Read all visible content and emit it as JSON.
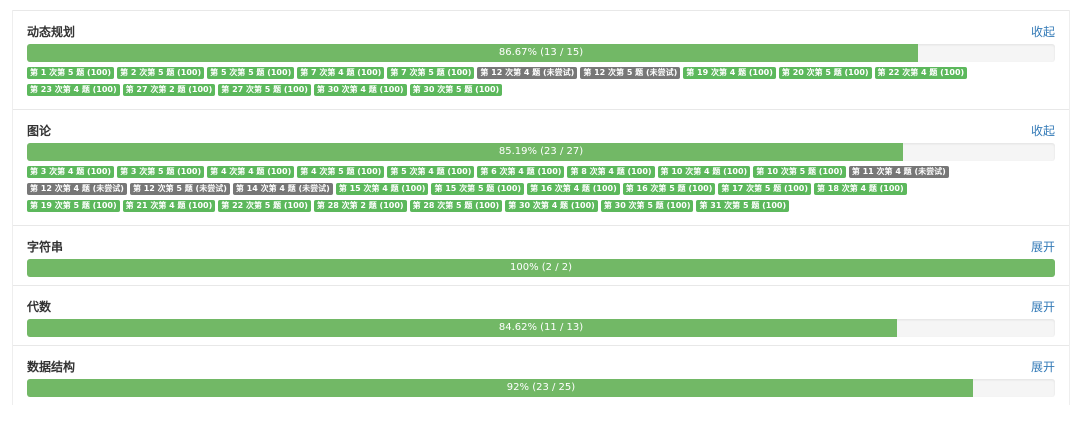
{
  "sections": [
    {
      "title": "动态规划",
      "toggle": "收起",
      "percent": 86.67,
      "label": "86.67% (13 / 15)",
      "badges": [
        {
          "t": "第 1 次第 5 题 (100)",
          "s": "ok"
        },
        {
          "t": "第 2 次第 5 题 (100)",
          "s": "ok"
        },
        {
          "t": "第 5 次第 5 题 (100)",
          "s": "ok"
        },
        {
          "t": "第 7 次第 4 题 (100)",
          "s": "ok"
        },
        {
          "t": "第 7 次第 5 题 (100)",
          "s": "ok"
        },
        {
          "t": "第 12 次第 4 题 (未尝试)",
          "s": "na"
        },
        {
          "t": "第 12 次第 5 题 (未尝试)",
          "s": "na"
        },
        {
          "t": "第 19 次第 4 题 (100)",
          "s": "ok"
        },
        {
          "t": "第 20 次第 5 题 (100)",
          "s": "ok"
        },
        {
          "t": "第 22 次第 4 题 (100)",
          "s": "ok"
        },
        {
          "t": "第 23 次第 4 题 (100)",
          "s": "ok"
        },
        {
          "t": "第 27 次第 2 题 (100)",
          "s": "ok"
        },
        {
          "t": "第 27 次第 5 题 (100)",
          "s": "ok"
        },
        {
          "t": "第 30 次第 4 题 (100)",
          "s": "ok"
        },
        {
          "t": "第 30 次第 5 题 (100)",
          "s": "ok"
        }
      ]
    },
    {
      "title": "图论",
      "toggle": "收起",
      "percent": 85.19,
      "label": "85.19% (23 / 27)",
      "badges": [
        {
          "t": "第 3 次第 4 题 (100)",
          "s": "ok"
        },
        {
          "t": "第 3 次第 5 题 (100)",
          "s": "ok"
        },
        {
          "t": "第 4 次第 4 题 (100)",
          "s": "ok"
        },
        {
          "t": "第 4 次第 5 题 (100)",
          "s": "ok"
        },
        {
          "t": "第 5 次第 4 题 (100)",
          "s": "ok"
        },
        {
          "t": "第 6 次第 4 题 (100)",
          "s": "ok"
        },
        {
          "t": "第 8 次第 4 题 (100)",
          "s": "ok"
        },
        {
          "t": "第 10 次第 4 题 (100)",
          "s": "ok"
        },
        {
          "t": "第 10 次第 5 题 (100)",
          "s": "ok"
        },
        {
          "t": "第 11 次第 4 题 (未尝试)",
          "s": "na"
        },
        {
          "t": "第 12 次第 4 题 (未尝试)",
          "s": "na"
        },
        {
          "t": "第 12 次第 5 题 (未尝试)",
          "s": "na"
        },
        {
          "t": "第 14 次第 4 题 (未尝试)",
          "s": "na"
        },
        {
          "t": "第 15 次第 4 题 (100)",
          "s": "ok"
        },
        {
          "t": "第 15 次第 5 题 (100)",
          "s": "ok"
        },
        {
          "t": "第 16 次第 4 题 (100)",
          "s": "ok"
        },
        {
          "t": "第 16 次第 5 题 (100)",
          "s": "ok"
        },
        {
          "t": "第 17 次第 5 题 (100)",
          "s": "ok"
        },
        {
          "t": "第 18 次第 4 题 (100)",
          "s": "ok"
        },
        {
          "t": "第 19 次第 5 题 (100)",
          "s": "ok"
        },
        {
          "t": "第 21 次第 4 题 (100)",
          "s": "ok"
        },
        {
          "t": "第 22 次第 5 题 (100)",
          "s": "ok"
        },
        {
          "t": "第 28 次第 2 题 (100)",
          "s": "ok"
        },
        {
          "t": "第 28 次第 5 题 (100)",
          "s": "ok"
        },
        {
          "t": "第 30 次第 4 题 (100)",
          "s": "ok"
        },
        {
          "t": "第 30 次第 5 题 (100)",
          "s": "ok"
        },
        {
          "t": "第 31 次第 5 题 (100)",
          "s": "ok"
        }
      ]
    },
    {
      "title": "字符串",
      "toggle": "展开",
      "percent": 100,
      "label": "100% (2 / 2)",
      "badges": []
    },
    {
      "title": "代数",
      "toggle": "展开",
      "percent": 84.62,
      "label": "84.62% (11 / 13)",
      "badges": []
    },
    {
      "title": "数据结构",
      "toggle": "展开",
      "percent": 92,
      "label": "92% (23 / 25)",
      "badges": []
    }
  ]
}
